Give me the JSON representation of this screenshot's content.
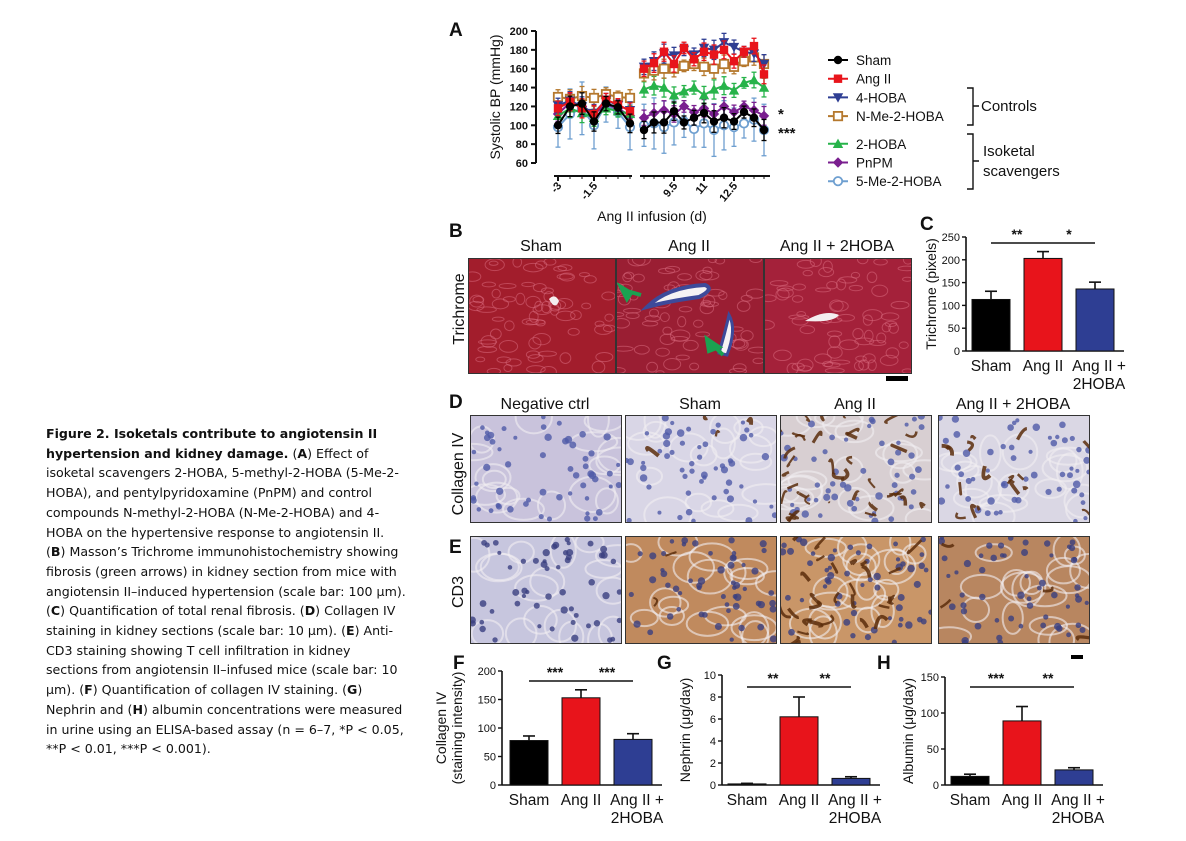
{
  "panel_letters": {
    "A": "A",
    "B": "B",
    "C": "C",
    "D": "D",
    "E": "E",
    "F": "F",
    "G": "G",
    "H": "H"
  },
  "caption": {
    "title": "Figure 2. Isoketals contribute to angiotensin II hypertension and kidney damage.",
    "letters": [
      "A",
      "B",
      "C",
      "D",
      "E",
      "F",
      "G",
      "H"
    ],
    "part1": " Effect of isoketal scavengers 2-HOBA, 5-methyl-2-HOBA (5-Me-2-HOBA), and pentylpyridoxamine (PnPM) and control compounds N-methyl-2-HOBA (N-Me-2-HOBA) and 4-HOBA on the hypertensive response to angiotensin II. ",
    "part2": " Masson’s Trichrome immunohistochemistry showing fibrosis (green arrows) in kidney section from mice with angiotensin II–induced hypertension (scale bar: 100 μm). ",
    "part3": " Quantification of total renal fibrosis. ",
    "part4": " Collagen IV staining in kidney sections (scale bar: 10 μm). ",
    "part5": " Anti-CD3 staining showing T cell infiltration in kidney sections from angiotensin II–infused mice (scale bar: 10 μm). ",
    "part6": " Quantification of collagen IV staining. ",
    "part7": " Nephrin and ",
    "part8": " albumin concentrations were measured in urine using an ELISA-based assay (n = 6–7, *P < 0.05, **P < 0.01, ***P < 0.001)."
  },
  "panelB": {
    "columns": [
      "Sham",
      "Ang II",
      "Ang II + 2HOBA"
    ],
    "row_label": "Trichrome"
  },
  "panelDE": {
    "columns": [
      "Negative ctrl",
      "Sham",
      "Ang II",
      "Ang II + 2HOBA"
    ],
    "row_D": "Collagen IV",
    "row_E": "CD3"
  },
  "colors": {
    "sham": "#000000",
    "angii": "#e8141b",
    "hoba": "#2e3e93",
    "nme": "#b5782d",
    "hoba2": "#27b34a",
    "pnpm": "#7a1f8f",
    "me5": "#6e9fd0",
    "arrow": "#1aa251"
  },
  "chart_data": [
    {
      "panel": "A",
      "type": "line",
      "ylabel": "Systolic BP (mmHg)",
      "xlabel": "Ang II infusion (d)",
      "ylim": [
        60,
        200
      ],
      "yticks": [
        60,
        80,
        100,
        120,
        140,
        160,
        180,
        200
      ],
      "xticks": [
        "-3",
        "-1.5",
        "9.5",
        "11",
        "12.5"
      ],
      "x_baseline": [
        -3,
        -2.5,
        -2,
        -1.5,
        -1,
        -0.5,
        0
      ],
      "x_infusion": [
        8,
        8.5,
        9,
        9.5,
        10,
        10.5,
        11,
        11.5,
        12,
        12.5,
        13,
        13.5,
        14
      ],
      "significance": [
        "*",
        "***"
      ],
      "groups": [
        {
          "label": "Controls",
          "members": [
            "Ang II",
            "4-HOBA",
            "N-Me-2-HOBA"
          ]
        },
        {
          "label": "Isoketal scavengers",
          "members": [
            "2-HOBA",
            "PnPM",
            "5-Me-2-HOBA"
          ]
        }
      ],
      "series": [
        {
          "name": "Sham",
          "color": "#000000",
          "marker": "circle",
          "baseline": [
            100,
            120,
            123,
            104,
            123,
            119,
            102
          ],
          "infusion": [
            95,
            103,
            103,
            115,
            103,
            108,
            113,
            104,
            108,
            104,
            114,
            108,
            95
          ]
        },
        {
          "name": "Ang II",
          "color": "#e8141b",
          "marker": "square",
          "baseline": [
            118,
            125,
            118,
            112,
            127,
            122,
            115
          ],
          "infusion": [
            160,
            166,
            178,
            165,
            182,
            170,
            178,
            175,
            180,
            168,
            178,
            184,
            154
          ]
        },
        {
          "name": "4-HOBA",
          "color": "#2e3e93",
          "marker": "triangle-down",
          "baseline": [
            121,
            126,
            120,
            113,
            127,
            121,
            116
          ],
          "infusion": [
            162,
            168,
            176,
            174,
            180,
            175,
            182,
            180,
            188,
            183,
            178,
            176,
            165
          ]
        },
        {
          "name": "N-Me-2-HOBA",
          "color": "#b5782d",
          "marker": "square-open",
          "baseline": [
            130,
            128,
            131,
            129,
            133,
            130,
            129
          ],
          "infusion": [
            155,
            158,
            160,
            160,
            163,
            165,
            162,
            160,
            165,
            162,
            168,
            172,
            165
          ]
        },
        {
          "name": "2-HOBA",
          "color": "#27b34a",
          "marker": "triangle-up",
          "baseline": [
            110,
            118,
            113,
            108,
            118,
            115,
            112
          ],
          "infusion": [
            138,
            142,
            140,
            132,
            136,
            140,
            132,
            138,
            142,
            137,
            145,
            148,
            140
          ]
        },
        {
          "name": "PnPM",
          "color": "#7a1f8f",
          "marker": "diamond",
          "baseline": [
            112,
            124,
            120,
            112,
            122,
            118,
            110
          ],
          "infusion": [
            108,
            113,
            116,
            112,
            120,
            114,
            118,
            112,
            120,
            114,
            120,
            116,
            110
          ]
        },
        {
          "name": "5-Me-2-HOBA",
          "color": "#6e9fd0",
          "marker": "circle-open",
          "baseline": [
            98,
            112,
            118,
            100,
            122,
            114,
            98
          ],
          "infusion": [
            100,
            102,
            98,
            103,
            104,
            96,
            102,
            95,
            100,
            98,
            102,
            106,
            95
          ]
        }
      ]
    },
    {
      "panel": "C",
      "type": "bar",
      "ylabel": "Trichrome (pixels)",
      "ylim": [
        0,
        250
      ],
      "yticks": [
        0,
        50,
        100,
        150,
        200,
        250
      ],
      "categories": [
        "Sham",
        "Ang II",
        "Ang II + 2HOBA"
      ],
      "values": [
        113,
        203,
        136
      ],
      "errors": [
        18,
        15,
        15
      ],
      "colors": [
        "#000000",
        "#e8141b",
        "#2e3e93"
      ],
      "significance": [
        {
          "between": [
            0,
            1
          ],
          "label": "**"
        },
        {
          "between": [
            1,
            2
          ],
          "label": "*"
        }
      ]
    },
    {
      "panel": "F",
      "type": "bar",
      "ylabel": "Collagen IV (staining intensity)",
      "ylim": [
        0,
        200
      ],
      "yticks": [
        0,
        50,
        100,
        150,
        200
      ],
      "categories": [
        "Sham",
        "Ang II",
        "Ang II + 2HOBA"
      ],
      "values": [
        78,
        153,
        80
      ],
      "errors": [
        8,
        14,
        10
      ],
      "colors": [
        "#000000",
        "#e8141b",
        "#2e3e93"
      ],
      "significance": [
        {
          "between": [
            0,
            1
          ],
          "label": "***"
        },
        {
          "between": [
            1,
            2
          ],
          "label": "***"
        }
      ]
    },
    {
      "panel": "G",
      "type": "bar",
      "ylabel": "Nephrin (μg/day)",
      "ylim": [
        0,
        10
      ],
      "yticks": [
        0,
        2,
        4,
        6,
        8,
        10
      ],
      "categories": [
        "Sham",
        "Ang II",
        "Ang II + 2HOBA"
      ],
      "values": [
        0.1,
        6.2,
        0.6
      ],
      "errors": [
        0.05,
        1.8,
        0.15
      ],
      "colors": [
        "#000000",
        "#e8141b",
        "#2e3e93"
      ],
      "significance": [
        {
          "between": [
            0,
            1
          ],
          "label": "**"
        },
        {
          "between": [
            1,
            2
          ],
          "label": "**"
        }
      ]
    },
    {
      "panel": "H",
      "type": "bar",
      "ylabel": "Albumin (μg/day)",
      "ylim": [
        0,
        150
      ],
      "yticks": [
        0,
        50,
        100,
        150
      ],
      "categories": [
        "Sham",
        "Ang II",
        "Ang II + 2HOBA"
      ],
      "values": [
        12,
        89,
        21
      ],
      "errors": [
        3,
        20,
        3
      ],
      "colors": [
        "#000000",
        "#e8141b",
        "#2e3e93"
      ],
      "significance": [
        {
          "between": [
            0,
            1
          ],
          "label": "***"
        },
        {
          "between": [
            1,
            2
          ],
          "label": "**"
        }
      ]
    }
  ]
}
